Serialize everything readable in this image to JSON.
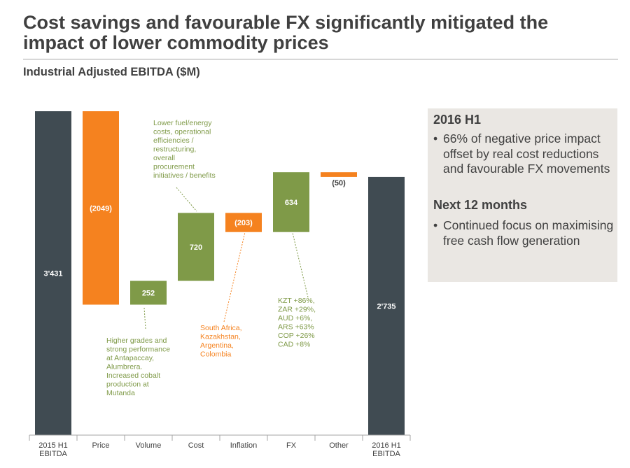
{
  "title_line1": "Cost savings and favourable FX significantly mitigated the",
  "title_line2": "impact of lower commodity prices",
  "subtitle": "Industrial Adjusted EBITDA ($M)",
  "colors": {
    "dark": "#404b52",
    "orange": "#f5821f",
    "green": "#7f9a48",
    "text": "#404040"
  },
  "sidebar": {
    "heading1": "2016 H1",
    "bullet1": "66% of negative price impact offset by real cost reductions and favourable FX movements",
    "heading2": "Next 12 months",
    "bullet2": "Continued focus on maximising free cash flow generation",
    "bullet_char": "•"
  },
  "chart_data": {
    "type": "waterfall",
    "title": "Industrial Adjusted EBITDA ($M)",
    "categories": [
      "2015 H1\nEBITDA",
      "Price",
      "Volume",
      "Cost",
      "Inflation",
      "FX",
      "Other",
      "2016 H1\nEBITDA"
    ],
    "values": [
      3431,
      -2049,
      252,
      720,
      -203,
      634,
      -50,
      2735
    ],
    "kinds": [
      "total",
      "decrease",
      "increase",
      "increase",
      "decrease",
      "increase",
      "decrease",
      "total"
    ],
    "value_labels": [
      "3'431",
      "(2049)",
      "252",
      "720",
      "(203)",
      "634",
      "(50)",
      "2'735"
    ],
    "annotations": [
      {
        "target": "Volume",
        "color": "green",
        "lines": [
          "Higher grades and",
          "strong performance",
          "at Antapaccay,",
          "Alumbrera.",
          "Increased cobalt",
          "production at",
          "Mutanda"
        ]
      },
      {
        "target": "Cost",
        "color": "green",
        "lines": [
          "Lower fuel/energy",
          "costs, operational",
          "efficiencies /",
          "restructuring,",
          "overall",
          "procurement",
          "initiatives / benefits"
        ]
      },
      {
        "target": "Inflation",
        "color": "orange",
        "lines": [
          "South Africa,",
          "Kazakhstan,",
          "Argentina,",
          "Colombia"
        ]
      },
      {
        "target": "FX",
        "color": "green",
        "lines": [
          "KZT +86%,",
          "ZAR +29%,",
          "AUD +6%,",
          "ARS +63%",
          "COP +26%",
          "CAD +8%"
        ]
      }
    ]
  }
}
